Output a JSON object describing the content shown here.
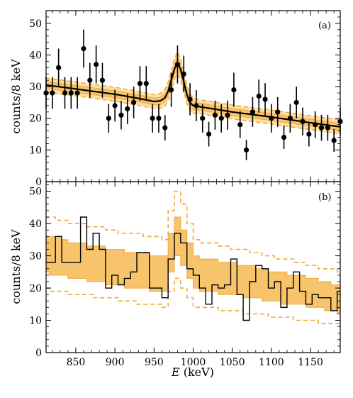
{
  "chart_data": [
    {
      "panel_label": "(a)",
      "type": "scatter",
      "ylabel": "counts/8 keV",
      "xlim": [
        812,
        1188
      ],
      "ylim": [
        0,
        54
      ],
      "yticks": [
        0,
        10,
        20,
        30,
        40,
        50
      ],
      "xticks": [
        850,
        900,
        950,
        1000,
        1050,
        1100,
        1150
      ],
      "points": {
        "x": [
          812,
          820,
          828,
          836,
          844,
          852,
          860,
          868,
          876,
          884,
          892,
          900,
          908,
          916,
          924,
          932,
          940,
          948,
          956,
          964,
          972,
          980,
          988,
          996,
          1004,
          1012,
          1020,
          1028,
          1036,
          1044,
          1052,
          1060,
          1068,
          1076,
          1084,
          1092,
          1100,
          1108,
          1116,
          1124,
          1132,
          1140,
          1148,
          1156,
          1164,
          1172,
          1180,
          1188
        ],
        "y": [
          28,
          28,
          36,
          28,
          28,
          28,
          42,
          32,
          37,
          32,
          20,
          24,
          21,
          23,
          25,
          31,
          31,
          20,
          20,
          17,
          29,
          37,
          34,
          26,
          24,
          20,
          15,
          21,
          20,
          21,
          29,
          18,
          10,
          22,
          27,
          26,
          20,
          22,
          14,
          20,
          25,
          19,
          15,
          18,
          17,
          17,
          13,
          19
        ],
        "yerr": [
          5,
          5,
          6,
          5,
          5,
          5,
          6,
          5.5,
          6,
          5.5,
          4.5,
          5,
          4.5,
          4.8,
          5,
          5.5,
          5.5,
          4.5,
          4.5,
          4,
          5.4,
          6,
          5.8,
          5.1,
          4.9,
          4.5,
          3.9,
          4.6,
          4.5,
          4.6,
          5.4,
          4.2,
          3.2,
          4.7,
          5.2,
          5.1,
          4.5,
          4.7,
          3.7,
          4.5,
          5,
          4.4,
          3.9,
          4.2,
          4.1,
          4.1,
          3.6,
          4.4
        ]
      },
      "fit_curve": {
        "x": [
          812,
          840,
          870,
          900,
          930,
          950,
          958,
          964,
          968,
          972,
          976,
          980,
          984,
          988,
          992,
          996,
          1000,
          1010,
          1050,
          1100,
          1150,
          1188
        ],
        "y": [
          30.5,
          29.6,
          28.6,
          27.6,
          26.3,
          25.3,
          25.5,
          26.5,
          28.5,
          32,
          35.5,
          37.5,
          35.5,
          31.5,
          27.5,
          25,
          24,
          23.6,
          22,
          20.4,
          18.6,
          17.3
        ]
      },
      "fit_band_inner": {
        "upper_offset": 1.1,
        "lower_offset": 1.1
      },
      "fit_band_outer": {
        "upper_offset": 2.2,
        "lower_offset": 2.2
      }
    },
    {
      "panel_label": "(b)",
      "type": "step",
      "xlabel": "E (keV)",
      "xlabel_italic": "E",
      "xlabel_unit": "(keV)",
      "ylabel": "counts/8 keV",
      "xlim": [
        812,
        1188
      ],
      "ylim": [
        0,
        53
      ],
      "yticks": [
        0,
        10,
        20,
        30,
        40,
        50
      ],
      "xticks": [
        850,
        900,
        950,
        1000,
        1050,
        1100,
        1150
      ],
      "bin_width": 8,
      "bin_edges_start": 808,
      "counts": [
        28,
        28,
        36,
        28,
        28,
        28,
        42,
        32,
        37,
        32,
        20,
        24,
        21,
        23,
        25,
        31,
        31,
        20,
        20,
        17,
        29,
        37,
        34,
        26,
        24,
        20,
        15,
        21,
        20,
        21,
        29,
        18,
        10,
        22,
        27,
        26,
        20,
        22,
        14,
        20,
        25,
        19,
        15,
        18,
        17,
        17,
        13,
        19
      ],
      "band_68_upper": [
        36,
        36,
        36,
        35,
        34,
        34,
        34,
        33,
        33,
        33,
        32,
        32,
        32,
        31,
        31,
        31,
        31,
        30,
        30,
        30,
        37,
        42,
        38,
        34,
        30,
        29,
        29,
        29,
        28,
        28,
        28,
        27,
        27,
        27,
        26,
        26,
        25,
        25,
        25,
        24,
        24,
        24,
        23,
        23,
        22,
        22,
        21,
        21
      ],
      "band_68_lower": [
        25,
        24,
        24,
        24,
        23,
        23,
        23,
        22,
        22,
        22,
        21,
        21,
        21,
        20,
        20,
        20,
        20,
        19,
        19,
        19,
        25,
        30,
        27,
        23,
        20,
        19,
        19,
        19,
        18,
        18,
        18,
        18,
        17,
        17,
        17,
        16,
        16,
        16,
        15,
        15,
        15,
        15,
        14,
        14,
        14,
        13,
        13,
        12
      ],
      "band_95_upper": [
        42,
        42,
        41,
        41,
        40,
        40,
        40,
        39,
        39,
        39,
        38,
        38,
        37,
        37,
        37,
        37,
        36,
        36,
        36,
        35,
        44,
        50,
        46,
        40,
        35,
        34,
        34,
        34,
        33,
        33,
        32,
        32,
        32,
        31,
        31,
        30,
        30,
        29,
        29,
        29,
        28,
        28,
        27,
        27,
        26,
        26,
        26,
        25
      ],
      "band_95_lower": [
        20,
        19,
        19,
        19,
        18,
        18,
        18,
        18,
        17,
        17,
        17,
        17,
        16,
        16,
        16,
        15,
        15,
        15,
        15,
        14,
        19,
        23,
        20,
        17,
        14,
        14,
        14,
        14,
        13,
        13,
        13,
        13,
        12,
        12,
        12,
        12,
        11,
        11,
        11,
        11,
        10,
        10,
        10,
        10,
        9,
        9,
        9,
        9
      ]
    }
  ],
  "colors": {
    "band": "#f7c46c",
    "band_line": "#f0a93a",
    "data": "#000000",
    "fit": "#000000"
  }
}
